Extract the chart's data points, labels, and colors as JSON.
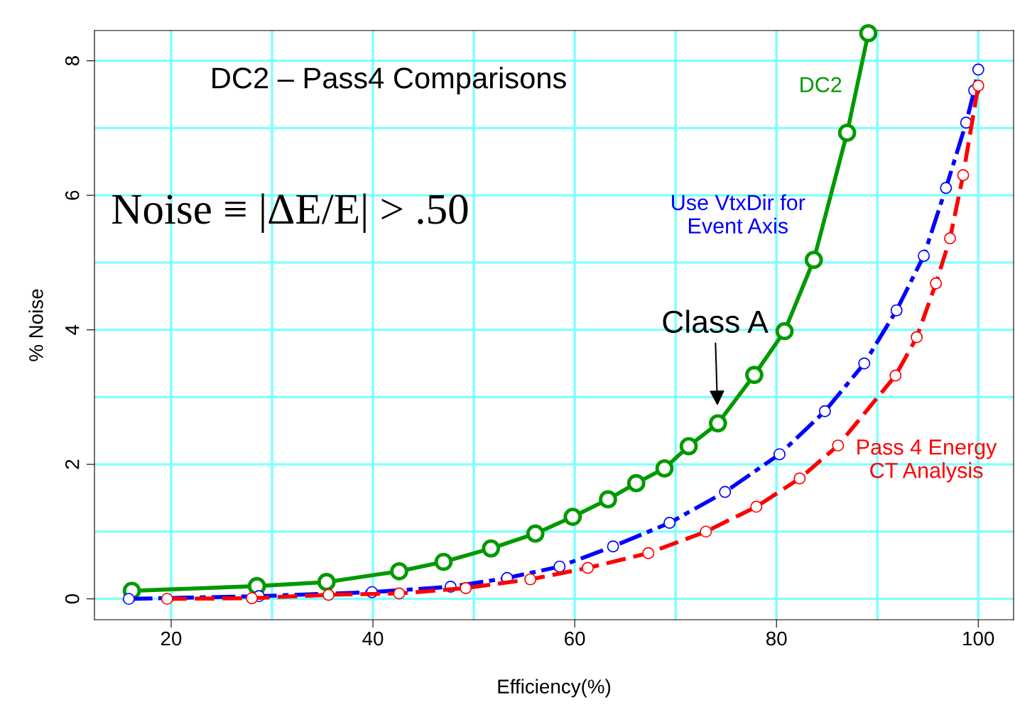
{
  "chart_data": {
    "type": "line",
    "xlabel": "Efficiency(%)",
    "ylabel": "% Noise",
    "title": "DC2 – Pass4 Comparisons",
    "xlim": [
      12.4,
      103.5
    ],
    "ylim": [
      -0.31,
      8.45
    ],
    "xticks": [
      20,
      {
        "value": 30,
        "label": null
      },
      40,
      {
        "value": 50,
        "label": null
      },
      60,
      {
        "value": 70,
        "label": null
      },
      80,
      {
        "value": 90,
        "label": null
      },
      100
    ],
    "yticks": [
      0,
      {
        "value": 1,
        "label": null
      },
      2,
      {
        "value": 3,
        "label": null
      },
      4,
      {
        "value": 5,
        "label": null
      },
      6,
      {
        "value": 7,
        "label": null
      },
      8
    ],
    "grid": true,
    "marker": "circle",
    "legend": false,
    "series": [
      {
        "name": "DC2",
        "color": "#009900",
        "line_style": "solid",
        "x": [
          16.1,
          28.5,
          35.4,
          42.6,
          47.0,
          51.7,
          56.1,
          59.8,
          63.3,
          66.1,
          68.9,
          71.3,
          74.2,
          77.8,
          80.8,
          83.7,
          87.0,
          89.1
        ],
        "values": [
          0.12,
          0.19,
          0.25,
          0.41,
          0.55,
          0.75,
          0.97,
          1.22,
          1.48,
          1.72,
          1.94,
          2.27,
          2.61,
          3.33,
          3.98,
          5.04,
          6.93,
          8.41
        ]
      },
      {
        "name": "Use VtxDir for\nEvent Axis",
        "color": "#0000ff",
        "line_style": "dashdot",
        "x": [
          15.8,
          28.7,
          39.9,
          47.7,
          53.3,
          58.5,
          63.8,
          69.4,
          74.9,
          80.3,
          84.8,
          88.7,
          91.9,
          94.6,
          96.8,
          98.8,
          99.6,
          100
        ],
        "values": [
          0.0,
          0.04,
          0.1,
          0.18,
          0.31,
          0.48,
          0.78,
          1.13,
          1.59,
          2.15,
          2.79,
          3.5,
          4.29,
          5.1,
          6.11,
          7.08,
          7.56,
          7.87
        ]
      },
      {
        "name": "Pass 4 Energy\nCT Analysis",
        "color": "#ff0000",
        "line_style": "dashed",
        "x": [
          19.6,
          28.0,
          35.6,
          42.6,
          49.2,
          55.6,
          61.3,
          67.3,
          73.0,
          78.0,
          82.3,
          86.1,
          91.8,
          93.9,
          95.8,
          97.2,
          98.5,
          100
        ],
        "values": [
          0.0,
          0.01,
          0.06,
          0.08,
          0.16,
          0.29,
          0.46,
          0.68,
          1.0,
          1.37,
          1.79,
          2.28,
          3.32,
          3.89,
          4.69,
          5.36,
          6.3,
          7.63
        ]
      }
    ],
    "annotations": [
      "Noise ≡ |ΔE/E| > .50",
      {
        "text": "Class A",
        "x": 74.2,
        "y": 2.61
      }
    ]
  }
}
